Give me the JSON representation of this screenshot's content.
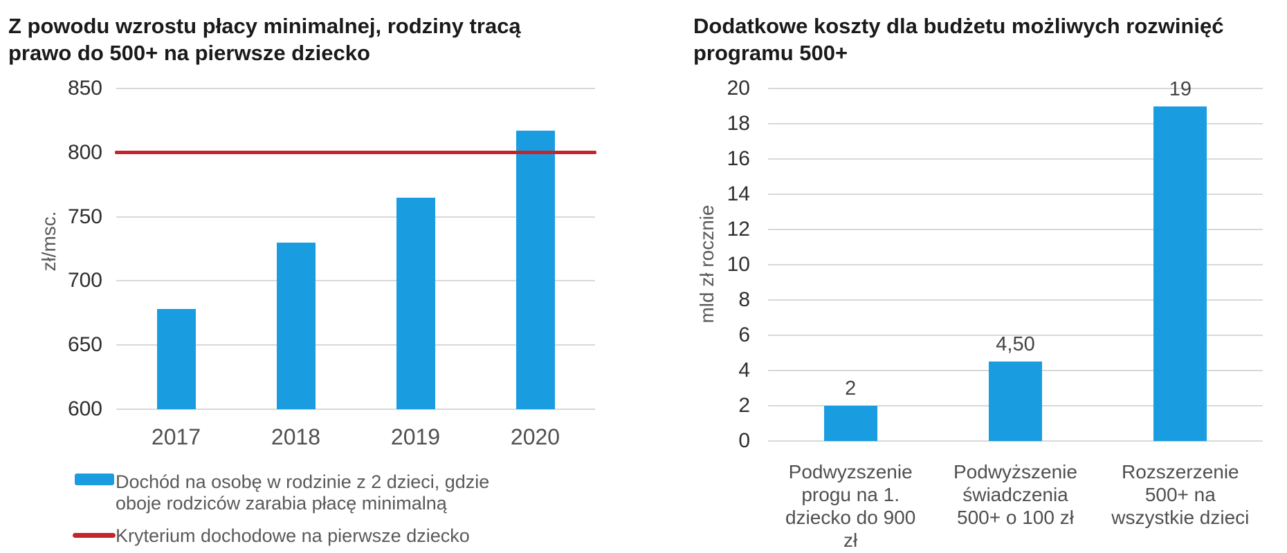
{
  "colors": {
    "bar_blue": "#1A9CE0",
    "line_red": "#C2262B",
    "grid": "#D8D8D8",
    "title_text": "#1A1A1A",
    "tick_text": "#2E2E2E",
    "category_text": "#4F4F4F",
    "legend_text": "#595959",
    "axis_title_text": "#595959",
    "data_label_text": "#444444",
    "background": "#FFFFFF"
  },
  "chart_data": [
    {
      "id": "left",
      "type": "bar",
      "title": "Z powodu wzrostu płacy minimalnej, rodziny tracą\nprawo do 500+ na pierwsze dziecko",
      "ylabel": "zł/msc.",
      "xlabel": "",
      "categories": [
        "2017",
        "2018",
        "2019",
        "2020"
      ],
      "values": [
        678,
        730,
        765,
        817
      ],
      "ylim": [
        600,
        850
      ],
      "yticks": [
        600,
        650,
        700,
        750,
        800,
        850
      ],
      "grid": true,
      "legend_position": "bottom",
      "reference_line": {
        "value": 800,
        "label": "Kryterium dochodowe na pierwsze dziecko"
      },
      "legend": [
        {
          "swatch": "bar",
          "label": "Dochód na osobę w rodzinie z 2 dzieci, gdzie\noboje rodziców zarabia płacę minimalną"
        },
        {
          "swatch": "line",
          "label": "Kryterium dochodowe na pierwsze dziecko"
        }
      ]
    },
    {
      "id": "right",
      "type": "bar",
      "title": "Dodatkowe koszty dla budżetu możliwych rozwinięć\nprogramu 500+",
      "ylabel": "mld zł rocznie",
      "xlabel": "",
      "categories": [
        "Podwyzszenie\nprogu na 1.\ndziecko do 900\nzł",
        "Podwyższenie\nświadczenia\n500+ o 100 zł",
        "Rozszerzenie\n500+ na\nwszystkie dzieci"
      ],
      "values": [
        2,
        4.5,
        19
      ],
      "data_labels": [
        "2",
        "4,50",
        "19"
      ],
      "ylim": [
        0,
        20
      ],
      "yticks": [
        0,
        2,
        4,
        6,
        8,
        10,
        12,
        14,
        16,
        18,
        20
      ],
      "grid": true
    }
  ]
}
